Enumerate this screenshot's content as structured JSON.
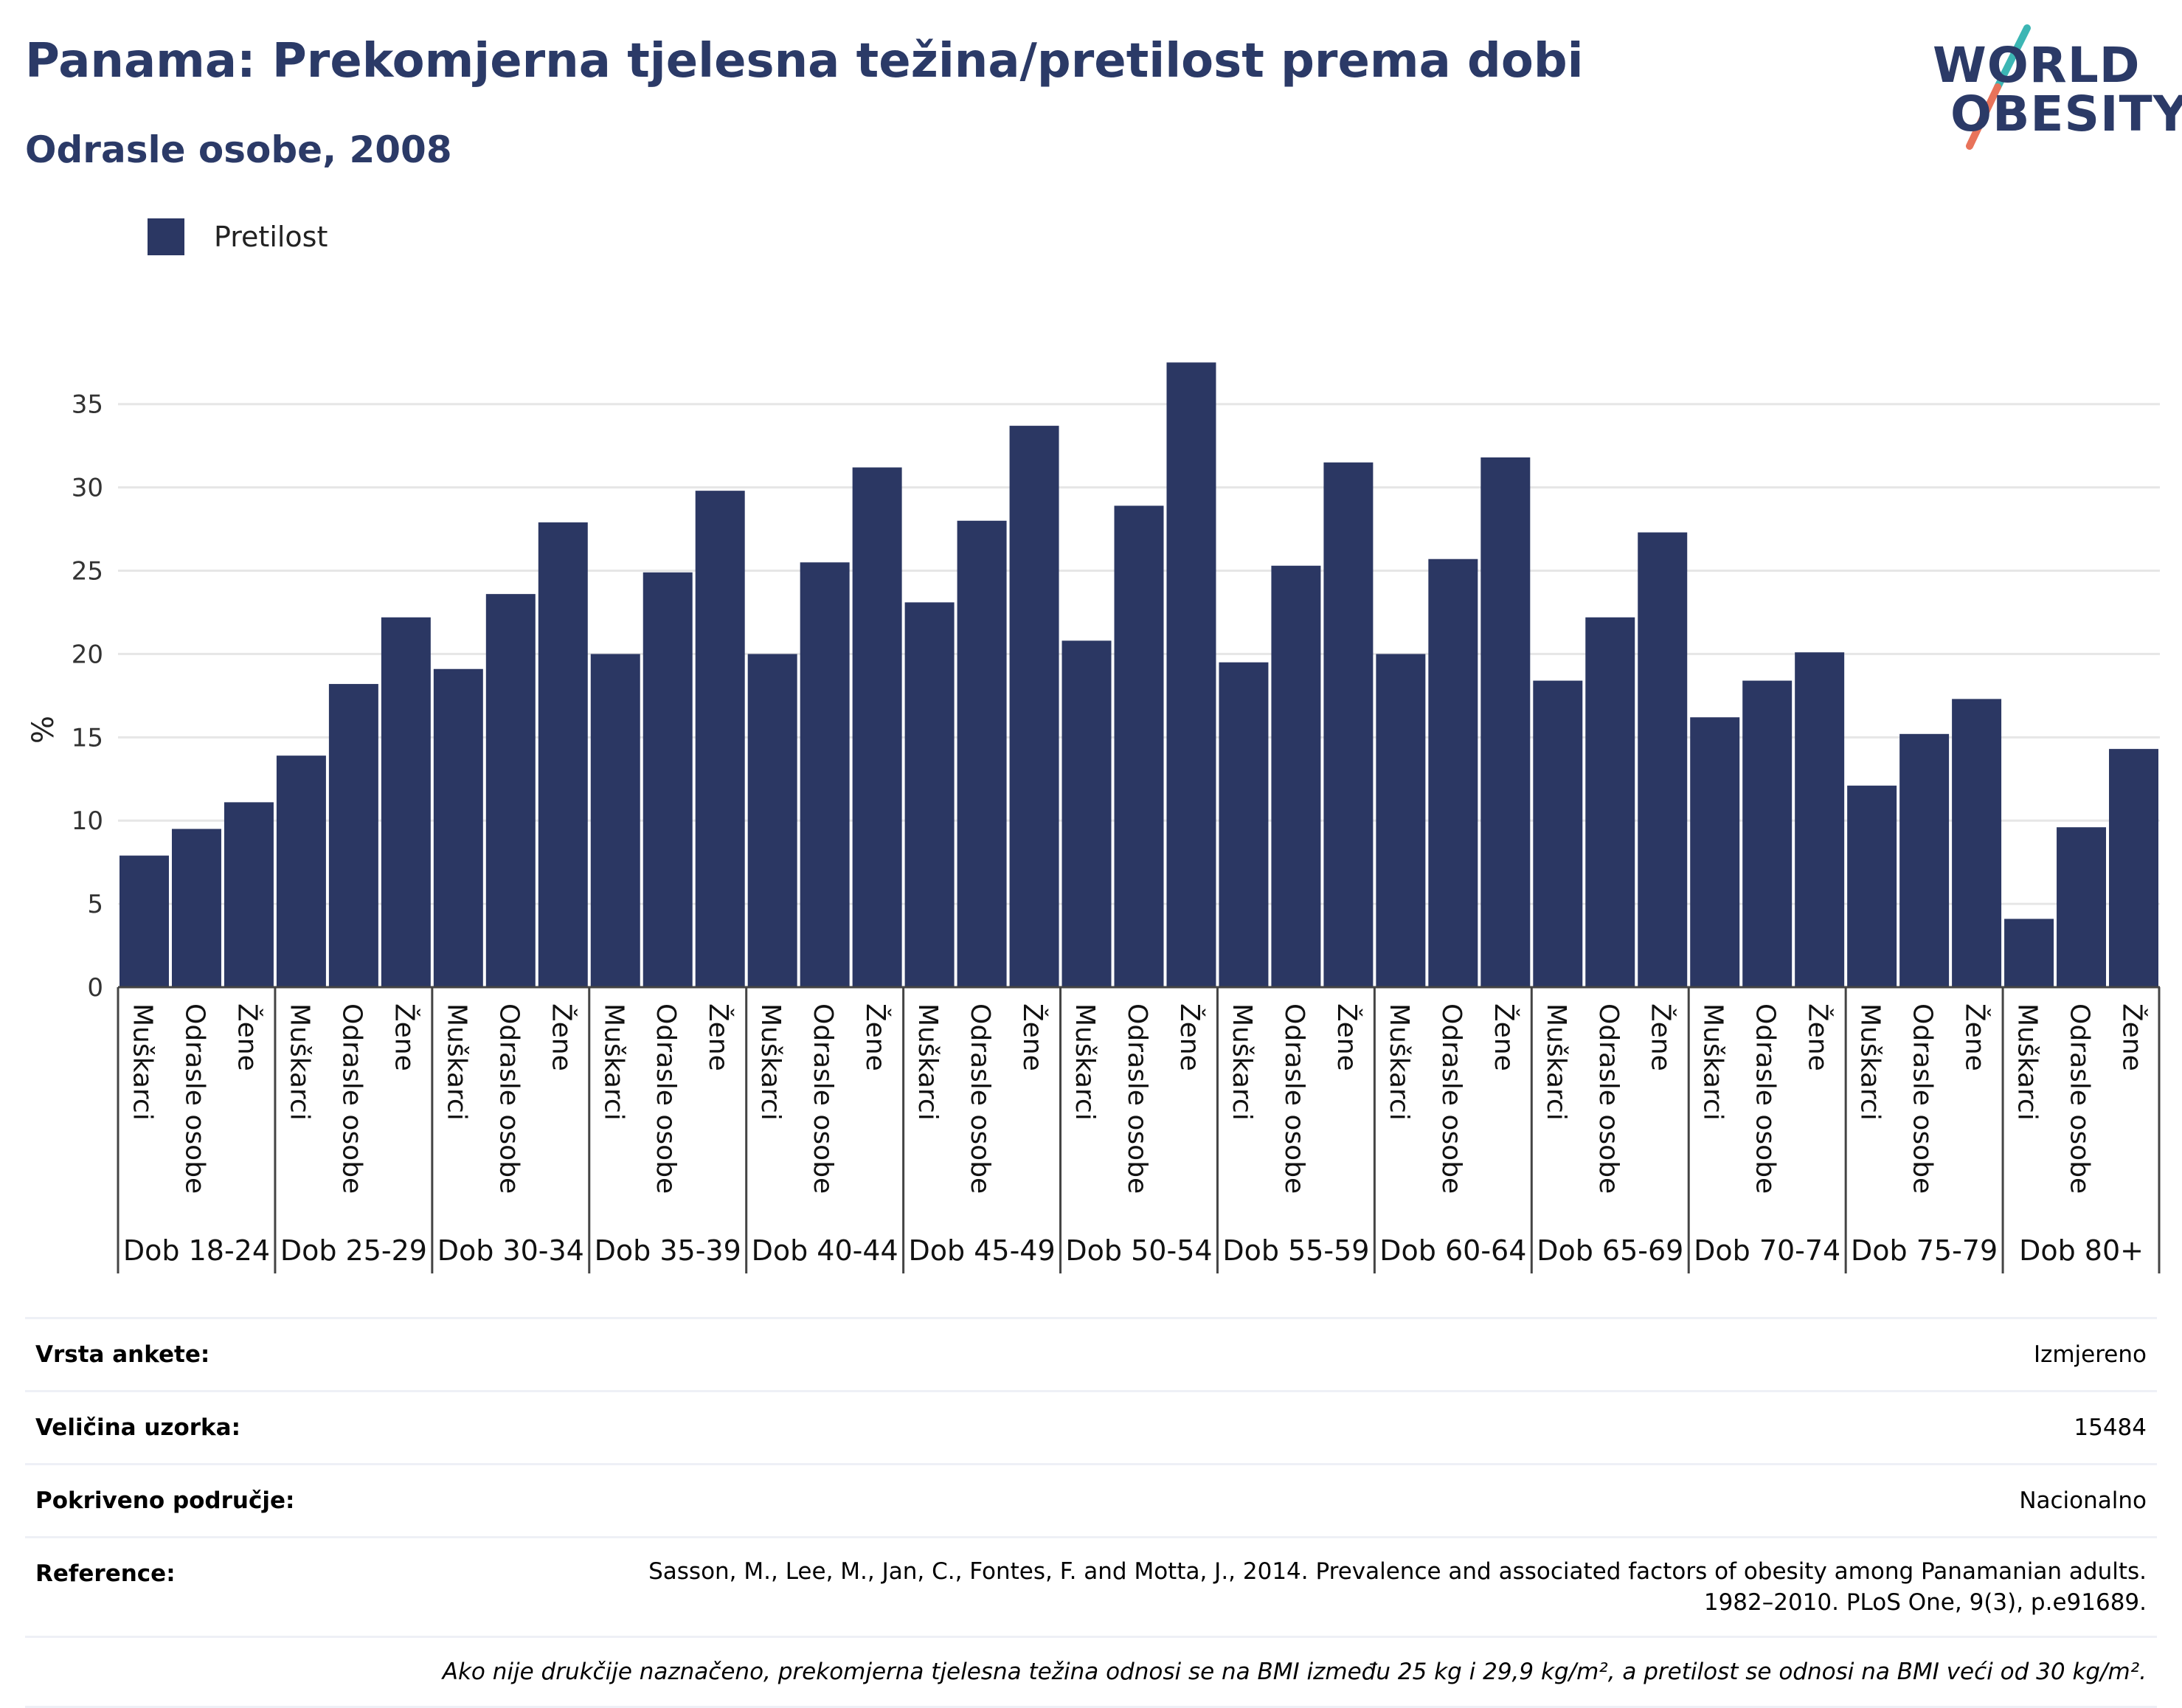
{
  "header": {
    "title": "Panama: Prekomjerna tjelesna težina/pretilost prema dobi",
    "subtitle": "Odrasle osobe, 2008"
  },
  "logo": {
    "line1": "WORLD",
    "line2": "OBESITY",
    "accent_colors": [
      "#3cb6b4",
      "#e8735a"
    ]
  },
  "legend": {
    "label": "Pretilost",
    "color": "#2b3763"
  },
  "chart_data": {
    "type": "bar",
    "ylabel": "%",
    "ylim": [
      0,
      38
    ],
    "yticks": [
      0,
      5,
      10,
      15,
      20,
      25,
      30,
      35
    ],
    "grid": true,
    "bar_color": "#2b3763",
    "groups": [
      {
        "label": "Dob 18-24",
        "categories": [
          "Muškarci",
          "Odrasle osobe",
          "Žene"
        ],
        "values": [
          7.9,
          9.5,
          11.1
        ]
      },
      {
        "label": "Dob 25-29",
        "categories": [
          "Muškarci",
          "Odrasle osobe",
          "Žene"
        ],
        "values": [
          13.9,
          18.2,
          22.2
        ]
      },
      {
        "label": "Dob 30-34",
        "categories": [
          "Muškarci",
          "Odrasle osobe",
          "Žene"
        ],
        "values": [
          19.1,
          23.6,
          27.9
        ]
      },
      {
        "label": "Dob 35-39",
        "categories": [
          "Muškarci",
          "Odrasle osobe",
          "Žene"
        ],
        "values": [
          20.0,
          24.9,
          29.8
        ]
      },
      {
        "label": "Dob 40-44",
        "categories": [
          "Muškarci",
          "Odrasle osobe",
          "Žene"
        ],
        "values": [
          20.0,
          25.5,
          31.2
        ]
      },
      {
        "label": "Dob 45-49",
        "categories": [
          "Muškarci",
          "Odrasle osobe",
          "Žene"
        ],
        "values": [
          23.1,
          28.0,
          33.7
        ]
      },
      {
        "label": "Dob 50-54",
        "categories": [
          "Muškarci",
          "Odrasle osobe",
          "Žene"
        ],
        "values": [
          20.8,
          28.9,
          37.5
        ]
      },
      {
        "label": "Dob 55-59",
        "categories": [
          "Muškarci",
          "Odrasle osobe",
          "Žene"
        ],
        "values": [
          19.5,
          25.3,
          31.5
        ]
      },
      {
        "label": "Dob 60-64",
        "categories": [
          "Muškarci",
          "Odrasle osobe",
          "Žene"
        ],
        "values": [
          20.0,
          25.7,
          31.8
        ]
      },
      {
        "label": "Dob 65-69",
        "categories": [
          "Muškarci",
          "Odrasle osobe",
          "Žene"
        ],
        "values": [
          18.4,
          22.2,
          27.3
        ]
      },
      {
        "label": "Dob 70-74",
        "categories": [
          "Muškarci",
          "Odrasle osobe",
          "Žene"
        ],
        "values": [
          16.2,
          18.4,
          20.1
        ]
      },
      {
        "label": "Dob 75-79",
        "categories": [
          "Muškarci",
          "Odrasle osobe",
          "Žene"
        ],
        "values": [
          12.1,
          15.2,
          17.3
        ]
      },
      {
        "label": "Dob 80+",
        "categories": [
          "Muškarci",
          "Odrasle osobe",
          "Žene"
        ],
        "values": [
          4.1,
          9.6,
          14.3
        ]
      }
    ]
  },
  "info": {
    "survey_type_label": "Vrsta ankete:",
    "survey_type_value": "Izmjereno",
    "sample_size_label": "Veličina uzorka:",
    "sample_size_value": "15484",
    "coverage_label": "Pokriveno područje:",
    "coverage_value": "Nacionalno",
    "reference_label": "Reference:",
    "reference_line1": "Sasson, M., Lee, M., Jan, C., Fontes, F. and Motta, J., 2014. Prevalence and associated factors of obesity among Panamanian adults.",
    "reference_line2": "1982–2010. PLoS One, 9(3), p.e91689.",
    "footnote": "Ako nije drukčije naznačeno, prekomjerna tjelesna težina odnosi se na BMI između 25 kg i 29,9 kg/m², a pretilost se odnosi na BMI veći od 30 kg/m²."
  }
}
